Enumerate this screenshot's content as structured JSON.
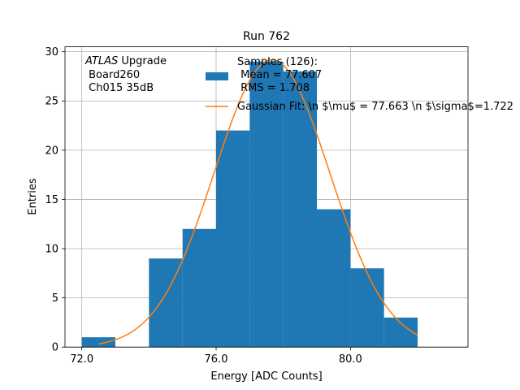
{
  "chart_data": {
    "type": "bar",
    "title": "Run 762",
    "xlabel": "Energy [ADC Counts]",
    "ylabel": "Entries",
    "xlim": [
      71.5,
      83.5
    ],
    "ylim": [
      0,
      30.5
    ],
    "xticks": [
      72.0,
      76.0,
      80.0
    ],
    "xtick_labels": [
      "72.0",
      "76.0",
      "80.0"
    ],
    "yticks": [
      0,
      5,
      10,
      15,
      20,
      25,
      30
    ],
    "grid": true,
    "legend_position": "top-center",
    "histogram": {
      "name": "Samples (126):\n Mean = 77.607\n RMS = 1.708",
      "color": "#1f77b4",
      "bin_edges": [
        72,
        73,
        74,
        75,
        76,
        77,
        78,
        79,
        80,
        81,
        82
      ],
      "counts": [
        1,
        0,
        9,
        12,
        22,
        29,
        28,
        14,
        8,
        3
      ]
    },
    "fit": {
      "name": "Gaussian Fit: \\n $\\mu$ = 77.663 \\n $\\sigma$=1.722",
      "color": "#ff7f0e",
      "mean": 77.663,
      "sigma": 1.722,
      "amplitude": 29.2,
      "x_range": [
        72.5,
        82.0
      ]
    },
    "annotation": {
      "italic_part": "ATLAS",
      "line1_rest": " Upgrade",
      "line2": " Board260",
      "line3": " Ch015 35dB"
    }
  }
}
